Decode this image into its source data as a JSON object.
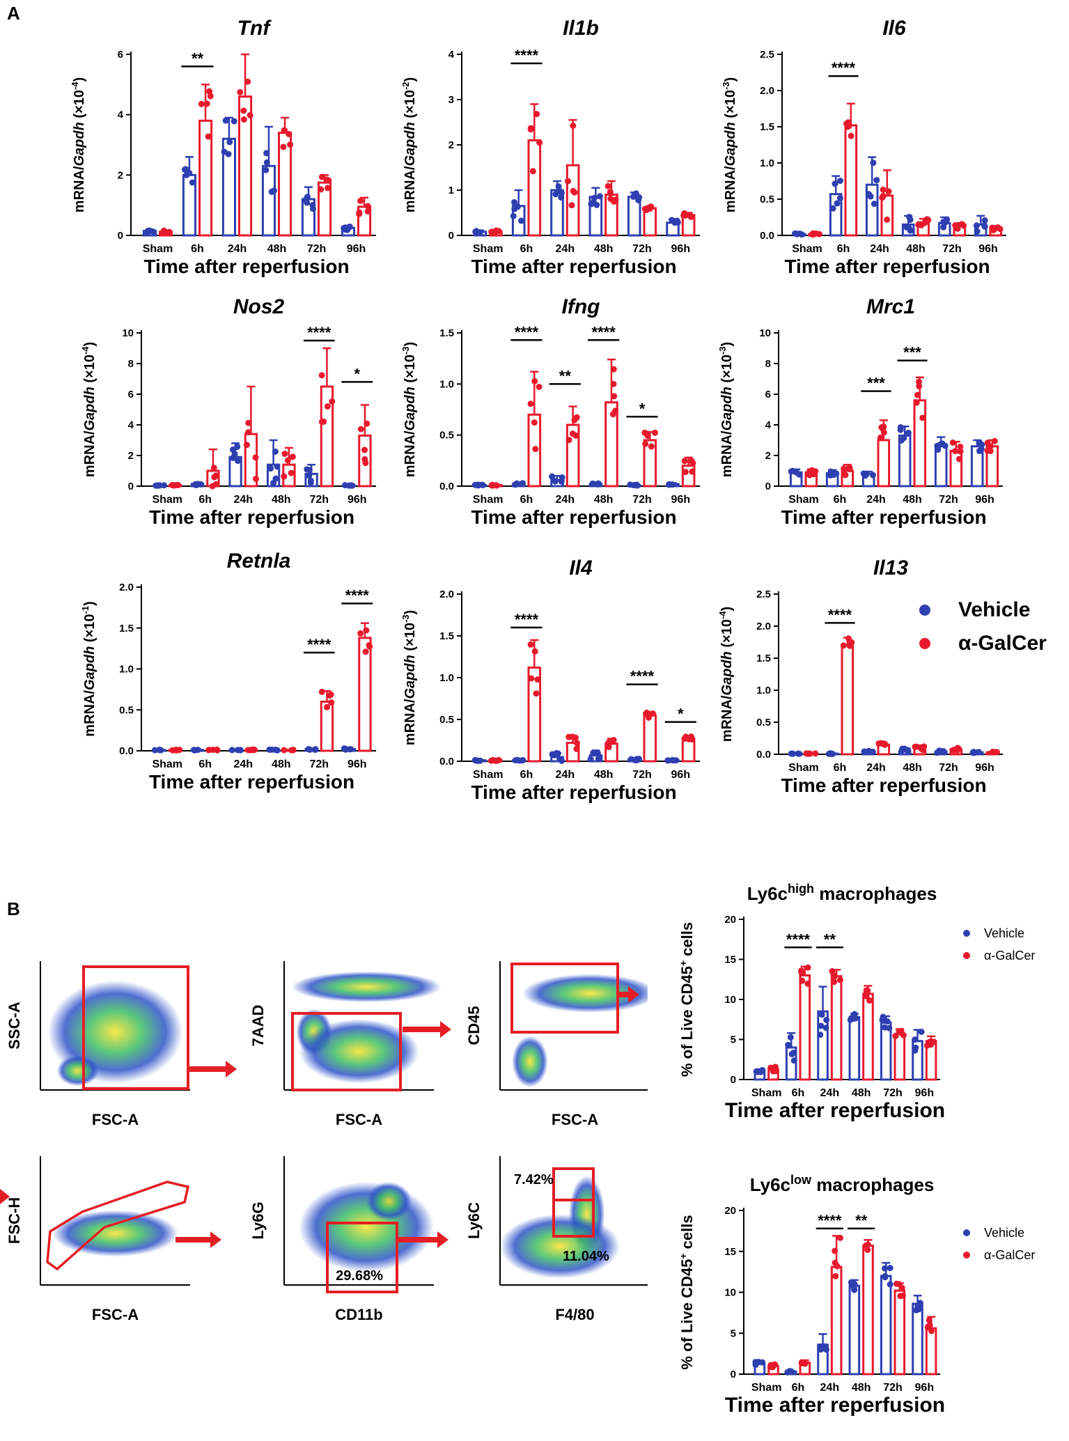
{
  "panel_labels": {
    "a": "A",
    "b": "B"
  },
  "legend_a": {
    "vehicle": "Vehicle",
    "agalcer": "α-GalCer"
  },
  "legend_b": {
    "vehicle": "Vehicle",
    "agalcer": "α-GalCer"
  },
  "colors": {
    "vehicle": "#2e3fb0",
    "agalcer": "#e8192c",
    "gate": "#e31e24"
  },
  "flow": {
    "plots": [
      {
        "ylabel": "SSC-A",
        "xlabel": "FSC-A"
      },
      {
        "ylabel": "7AAD",
        "xlabel": "FSC-A"
      },
      {
        "ylabel": "CD45",
        "xlabel": "FSC-A"
      },
      {
        "ylabel": "FSC-H",
        "xlabel": "FSC-A"
      },
      {
        "ylabel": "Ly6G",
        "xlabel": "CD11b"
      },
      {
        "ylabel": "Ly6C",
        "xlabel": "F4/80"
      }
    ],
    "gate_values": {
      "cd11b_gate": "29.68%",
      "ly6c_high": "7.42%",
      "ly6c_low": "11.04%"
    }
  },
  "chart_data": [
    {
      "id": "tnf",
      "type": "bar",
      "title": "Tnf",
      "title_italic": true,
      "ylabel_pre": "mRNA/",
      "ylabel_gene": "Gapdh",
      "ylabel_post": " (×10",
      "ylabel_exp": "-4",
      "ylabel_end": ")",
      "xlabel": "Time after reperfusion",
      "categories": [
        "Sham",
        "6h",
        "24h",
        "48h",
        "72h",
        "96h"
      ],
      "ylim": [
        0,
        6
      ],
      "yticks": [
        0,
        2,
        4,
        6
      ],
      "ytick_labels": [
        "0",
        "2",
        "4",
        "6"
      ],
      "series": [
        {
          "name": "Vehicle",
          "values": [
            0.15,
            2.0,
            3.2,
            2.3,
            1.2,
            0.25
          ],
          "errors": [
            0.05,
            0.6,
            0.7,
            1.3,
            0.4,
            0.08
          ]
        },
        {
          "name": "α-GalCer",
          "values": [
            0.12,
            3.8,
            4.6,
            3.4,
            1.75,
            0.95
          ],
          "errors": [
            0.04,
            1.2,
            1.4,
            0.5,
            0.25,
            0.3
          ]
        }
      ],
      "sig": [
        {
          "category": 1,
          "label": "**",
          "y": 5.6
        }
      ]
    },
    {
      "id": "il1b",
      "type": "bar",
      "title": "Il1b",
      "title_italic": true,
      "ylabel_pre": "mRNA/",
      "ylabel_gene": "Gapdh",
      "ylabel_post": " (×10",
      "ylabel_exp": "-2",
      "ylabel_end": ")",
      "xlabel": "Time after reperfusion",
      "categories": [
        "Sham",
        "6h",
        "24h",
        "48h",
        "72h",
        "96h"
      ],
      "ylim": [
        0,
        4
      ],
      "yticks": [
        0,
        1,
        2,
        3,
        4
      ],
      "ytick_labels": [
        "0",
        "1",
        "2",
        "3",
        "4"
      ],
      "series": [
        {
          "name": "Vehicle",
          "values": [
            0.08,
            0.65,
            1.0,
            0.85,
            0.85,
            0.28
          ],
          "errors": [
            0.03,
            0.35,
            0.2,
            0.2,
            0.1,
            0.08
          ]
        },
        {
          "name": "α-GalCer",
          "values": [
            0.08,
            2.1,
            1.55,
            0.9,
            0.6,
            0.45
          ],
          "errors": [
            0.03,
            0.8,
            1.0,
            0.3,
            0.05,
            0.05
          ]
        }
      ],
      "sig": [
        {
          "category": 1,
          "label": "****",
          "y": 3.8
        }
      ]
    },
    {
      "id": "il6",
      "type": "bar",
      "title": "Il6",
      "title_italic": true,
      "ylabel_pre": "mRNA/",
      "ylabel_gene": "Gapdh",
      "ylabel_post": " (×10",
      "ylabel_exp": "-3",
      "ylabel_end": ")",
      "xlabel": "Time after reperfusion",
      "categories": [
        "Sham",
        "6h",
        "24h",
        "48h",
        "72h",
        "96h"
      ],
      "ylim": [
        0,
        2.5
      ],
      "yticks": [
        0,
        0.5,
        1.0,
        1.5,
        2.0,
        2.5
      ],
      "ytick_labels": [
        "0.0",
        "0.5",
        "1.0",
        "1.5",
        "2.0",
        "2.5"
      ],
      "series": [
        {
          "name": "Vehicle",
          "values": [
            0.02,
            0.57,
            0.7,
            0.15,
            0.17,
            0.15
          ],
          "errors": [
            0.01,
            0.25,
            0.38,
            0.12,
            0.08,
            0.12
          ]
        },
        {
          "name": "α-GalCer",
          "values": [
            0.02,
            1.52,
            0.55,
            0.18,
            0.13,
            0.1
          ],
          "errors": [
            0.01,
            0.3,
            0.35,
            0.05,
            0.04,
            0.03
          ]
        }
      ],
      "sig": [
        {
          "category": 1,
          "label": "****",
          "y": 2.2
        }
      ]
    },
    {
      "id": "nos2",
      "type": "bar",
      "title": "Nos2",
      "title_italic": true,
      "ylabel_pre": "mRNA/",
      "ylabel_gene": "Gapdh",
      "ylabel_post": " (×10",
      "ylabel_exp": "-4",
      "ylabel_end": ")",
      "xlabel": "Time after reperfusion",
      "categories": [
        "Sham",
        "6h",
        "24h",
        "48h",
        "72h",
        "96h"
      ],
      "ylim": [
        0,
        10
      ],
      "yticks": [
        0,
        2,
        4,
        6,
        8,
        10
      ],
      "ytick_labels": [
        "0",
        "2",
        "4",
        "6",
        "8",
        "10"
      ],
      "series": [
        {
          "name": "Vehicle",
          "values": [
            0.05,
            0.15,
            1.9,
            1.4,
            0.8,
            0.05
          ],
          "errors": [
            0.02,
            0.1,
            0.9,
            1.6,
            0.6,
            0.02
          ]
        },
        {
          "name": "α-GalCer",
          "values": [
            0.05,
            1.0,
            3.4,
            1.4,
            6.5,
            3.3
          ],
          "errors": [
            0.02,
            1.4,
            3.1,
            1.1,
            2.5,
            2.0
          ]
        }
      ],
      "sig": [
        {
          "category": 4,
          "label": "****",
          "y": 9.5
        },
        {
          "category": 5,
          "label": "*",
          "y": 6.8
        }
      ]
    },
    {
      "id": "ifng",
      "type": "bar",
      "title": "Ifng",
      "title_italic": true,
      "ylabel_pre": "mRNA/",
      "ylabel_gene": "Gapdh",
      "ylabel_post": " (×10",
      "ylabel_exp": "-3",
      "ylabel_end": ")",
      "xlabel": "Time after reperfusion",
      "categories": [
        "Sham",
        "6h",
        "24h",
        "48h",
        "72h",
        "96h"
      ],
      "ylim": [
        0,
        1.5
      ],
      "yticks": [
        0,
        0.5,
        1.0,
        1.5
      ],
      "ytick_labels": [
        "0.0",
        "0.5",
        "1.0",
        "1.5"
      ],
      "series": [
        {
          "name": "Vehicle",
          "values": [
            0.01,
            0.02,
            0.06,
            0.02,
            0.01,
            0.02
          ],
          "errors": [
            0.005,
            0.01,
            0.04,
            0.01,
            0.005,
            0.01
          ]
        },
        {
          "name": "α-GalCer",
          "values": [
            0.01,
            0.7,
            0.6,
            0.82,
            0.45,
            0.2
          ],
          "errors": [
            0.005,
            0.42,
            0.18,
            0.42,
            0.08,
            0.08
          ]
        }
      ],
      "sig": [
        {
          "category": 1,
          "label": "****",
          "y": 1.43
        },
        {
          "category": 2,
          "label": "**",
          "y": 1.0
        },
        {
          "category": 3,
          "label": "****",
          "y": 1.43
        },
        {
          "category": 4,
          "label": "*",
          "y": 0.68
        }
      ]
    },
    {
      "id": "mrc1",
      "type": "bar",
      "title": "Mrc1",
      "title_italic": true,
      "ylabel_pre": "mRNA/",
      "ylabel_gene": "Gapdh",
      "ylabel_post": " (×10",
      "ylabel_exp": "-3",
      "ylabel_end": ")",
      "xlabel": "Time after reperfusion",
      "categories": [
        "Sham",
        "6h",
        "24h",
        "48h",
        "72h",
        "96h"
      ],
      "ylim": [
        0,
        10
      ],
      "yticks": [
        0,
        2,
        4,
        6,
        8,
        10
      ],
      "ytick_labels": [
        "0",
        "2",
        "4",
        "6",
        "8",
        "10"
      ],
      "series": [
        {
          "name": "Vehicle",
          "values": [
            0.9,
            0.85,
            0.8,
            3.3,
            2.7,
            2.6
          ],
          "errors": [
            0.2,
            0.2,
            0.15,
            0.6,
            0.5,
            0.4
          ]
        },
        {
          "name": "α-GalCer",
          "values": [
            0.9,
            1.0,
            3.0,
            5.6,
            2.3,
            2.6
          ],
          "errors": [
            0.2,
            0.4,
            1.3,
            1.5,
            0.6,
            0.4
          ]
        }
      ],
      "sig": [
        {
          "category": 2,
          "label": "***",
          "y": 6.2
        },
        {
          "category": 3,
          "label": "***",
          "y": 8.2
        }
      ]
    },
    {
      "id": "retnla",
      "type": "bar",
      "title": "Retnla",
      "title_italic": true,
      "ylabel_pre": "mRNA/",
      "ylabel_gene": "Gapdh",
      "ylabel_post": " (×10",
      "ylabel_exp": "-1",
      "ylabel_end": ")",
      "xlabel": "Time after reperfusion",
      "categories": [
        "Sham",
        "6h",
        "24h",
        "48h",
        "72h",
        "96h"
      ],
      "ylim": [
        0,
        2.0
      ],
      "yticks": [
        0,
        0.5,
        1.0,
        1.5,
        2.0
      ],
      "ytick_labels": [
        "0.0",
        "0.5",
        "1.0",
        "1.5",
        "2.0"
      ],
      "series": [
        {
          "name": "Vehicle",
          "values": [
            0.01,
            0.01,
            0.01,
            0.01,
            0.02,
            0.02
          ],
          "errors": [
            0.005,
            0.005,
            0.005,
            0.005,
            0.01,
            0.01
          ]
        },
        {
          "name": "α-GalCer",
          "values": [
            0.01,
            0.01,
            0.01,
            0.01,
            0.6,
            1.38
          ],
          "errors": [
            0.005,
            0.005,
            0.005,
            0.005,
            0.13,
            0.18
          ]
        }
      ],
      "sig": [
        {
          "category": 4,
          "label": "****",
          "y": 1.2
        },
        {
          "category": 5,
          "label": "****",
          "y": 1.8
        }
      ]
    },
    {
      "id": "il4",
      "type": "bar",
      "title": "Il4",
      "title_italic": true,
      "ylabel_pre": "mRNA/",
      "ylabel_gene": "Gapdh",
      "ylabel_post": " (×10",
      "ylabel_exp": "-3",
      "ylabel_end": ")",
      "xlabel": "Time after reperfusion",
      "categories": [
        "Sham",
        "6h",
        "24h",
        "48h",
        "72h",
        "96h"
      ],
      "ylim": [
        0,
        2.0
      ],
      "yticks": [
        0,
        0.5,
        1.0,
        1.5,
        2.0
      ],
      "ytick_labels": [
        "0.0",
        "0.5",
        "1.0",
        "1.5",
        "2.0"
      ],
      "series": [
        {
          "name": "Vehicle",
          "values": [
            0.01,
            0.01,
            0.05,
            0.07,
            0.02,
            0.01
          ],
          "errors": [
            0.005,
            0.005,
            0.05,
            0.06,
            0.01,
            0.005
          ]
        },
        {
          "name": "α-GalCer",
          "values": [
            0.01,
            1.12,
            0.22,
            0.21,
            0.55,
            0.27
          ],
          "errors": [
            0.005,
            0.33,
            0.08,
            0.06,
            0.04,
            0.03
          ]
        }
      ],
      "sig": [
        {
          "category": 1,
          "label": "****",
          "y": 1.6
        },
        {
          "category": 4,
          "label": "****",
          "y": 0.92
        },
        {
          "category": 5,
          "label": "*",
          "y": 0.47
        }
      ]
    },
    {
      "id": "il13",
      "type": "bar",
      "title": "Il13",
      "title_italic": true,
      "ylabel_pre": "mRNA/",
      "ylabel_gene": "Gapdh",
      "ylabel_post": " (×10",
      "ylabel_exp": "-4",
      "ylabel_end": ")",
      "xlabel": "Time after reperfusion",
      "categories": [
        "Sham",
        "6h",
        "24h",
        "48h",
        "72h",
        "96h"
      ],
      "ylim": [
        0,
        2.5
      ],
      "yticks": [
        0,
        0.5,
        1.0,
        1.5,
        2.0,
        2.5
      ],
      "ytick_labels": [
        "0.0",
        "0.5",
        "1.0",
        "1.5",
        "2.0",
        "2.5"
      ],
      "series": [
        {
          "name": "Vehicle",
          "values": [
            0.01,
            0.01,
            0.05,
            0.05,
            0.04,
            0.03
          ],
          "errors": [
            0.005,
            0.005,
            0.02,
            0.04,
            0.02,
            0.01
          ]
        },
        {
          "name": "α-GalCer",
          "values": [
            0.01,
            1.7,
            0.15,
            0.1,
            0.08,
            0.03
          ],
          "errors": [
            0.005,
            0.12,
            0.03,
            0.04,
            0.02,
            0.01
          ]
        }
      ],
      "sig": [
        {
          "category": 1,
          "label": "****",
          "y": 2.05
        }
      ]
    },
    {
      "id": "ly6c_high",
      "type": "bar",
      "title": "Ly6c",
      "title_sup": "high",
      "title_tail": " macrophages",
      "title_italic": false,
      "ylabel_pre": "% of Live CD45",
      "ylabel_sup": "+",
      "ylabel_end": " cells",
      "xlabel": "Time after reperfusion",
      "categories": [
        "Sham",
        "6h",
        "24h",
        "48h",
        "72h",
        "96h"
      ],
      "ylim": [
        0,
        20
      ],
      "yticks": [
        0,
        5,
        10,
        15,
        20
      ],
      "ytick_labels": [
        "0",
        "5",
        "10",
        "15",
        "20"
      ],
      "series": [
        {
          "name": "Vehicle",
          "values": [
            1.1,
            4.0,
            8.5,
            7.8,
            7.1,
            4.8
          ],
          "errors": [
            0.2,
            1.8,
            3.1,
            0.4,
            0.8,
            1.4
          ]
        },
        {
          "name": "α-GalCer",
          "values": [
            1.3,
            13.0,
            12.9,
            10.7,
            5.7,
            4.8
          ],
          "errors": [
            0.3,
            1.1,
            0.8,
            1.0,
            0.6,
            0.6
          ]
        }
      ],
      "sig": [
        {
          "category": 1,
          "label": "****",
          "y": 16.5
        },
        {
          "category": 2,
          "label": "**",
          "y": 16.5
        }
      ]
    },
    {
      "id": "ly6c_low",
      "type": "bar",
      "title": "Ly6c",
      "title_sup": "low",
      "title_tail": " macrophages",
      "title_italic": false,
      "ylabel_pre": "% of Live CD45",
      "ylabel_sup": "+",
      "ylabel_end": " cells",
      "xlabel": "Time after reperfusion",
      "categories": [
        "Sham",
        "6h",
        "24h",
        "48h",
        "72h",
        "96h"
      ],
      "ylim": [
        0,
        20
      ],
      "yticks": [
        0,
        5,
        10,
        15,
        20
      ],
      "ytick_labels": [
        "0",
        "5",
        "10",
        "15",
        "20"
      ],
      "series": [
        {
          "name": "Vehicle",
          "values": [
            1.3,
            0.3,
            3.6,
            10.8,
            12.0,
            8.6
          ],
          "errors": [
            0.2,
            0.1,
            1.3,
            0.7,
            1.6,
            1.0
          ]
        },
        {
          "name": "α-GalCer",
          "values": [
            1.0,
            1.4,
            13.1,
            15.7,
            10.2,
            5.6
          ],
          "errors": [
            0.2,
            0.3,
            3.8,
            0.7,
            0.9,
            1.4
          ]
        }
      ],
      "sig": [
        {
          "category": 2,
          "label": "****",
          "y": 17.8
        },
        {
          "category": 3,
          "label": "**",
          "y": 17.8
        }
      ]
    }
  ]
}
